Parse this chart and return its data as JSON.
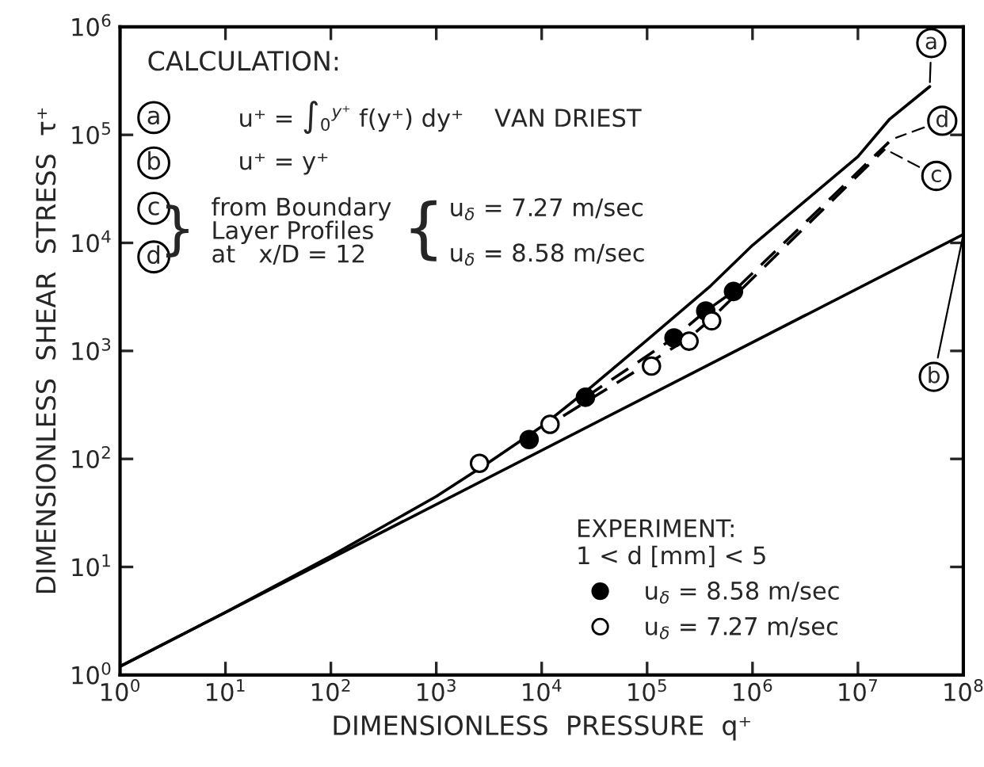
{
  "chart_data": {
    "type": "line",
    "xlabel": "DIMENSIONLESS  PRESSURE  q⁺",
    "ylabel": "DIMENSIONLESS  SHEAR  STRESS  τ⁺",
    "log": "xy",
    "xlim": [
      1,
      100000000
    ],
    "ylim": [
      1,
      1000000
    ],
    "xticks": [
      {
        "value": 1,
        "label": "10$^{0}$"
      },
      {
        "value": 10,
        "label": "10$^{1}$"
      },
      {
        "value": 100,
        "label": "10$^{2}$"
      },
      {
        "value": 1000,
        "label": "10$^{3}$"
      },
      {
        "value": 10000,
        "label": "10$^{4}$"
      },
      {
        "value": 100000,
        "label": "10$^{5}$"
      },
      {
        "value": 1000000,
        "label": "10$^{6}$"
      },
      {
        "value": 10000000,
        "label": "10$^{7}$"
      },
      {
        "value": 100000000,
        "label": "10$^{8}$"
      }
    ],
    "yticks": [
      {
        "value": 1,
        "label": "10$^{0}$"
      },
      {
        "value": 10,
        "label": "10$^{1}$"
      },
      {
        "value": 100,
        "label": "10$^{2}$"
      },
      {
        "value": 1000,
        "label": "10$^{3}$"
      },
      {
        "value": 10000,
        "label": "10$^{4}$"
      },
      {
        "value": 100000,
        "label": "10$^{5}$"
      },
      {
        "value": 1000000,
        "label": "10$^{6}$"
      }
    ],
    "grid": false,
    "legend": "bottom right",
    "legend_title": "EXPERIMENT:\n1 < d [mm] < 5",
    "series": [
      {
        "name": "a",
        "color": "#000000",
        "line_style": "solid",
        "marker": "none",
        "x": [
          1,
          10,
          100,
          1000,
          3000,
          10000,
          30000,
          100000,
          400000,
          1000000,
          10000000,
          20000000,
          48000000
        ],
        "values": [
          1.2,
          3.8,
          12.6,
          45,
          90,
          200,
          470,
          1260,
          4000,
          9500,
          63000,
          140000,
          280000
        ]
      },
      {
        "name": "b",
        "color": "#000000",
        "line_style": "solid",
        "marker": "none",
        "x": [
          1,
          100000000
        ],
        "values": [
          1.2,
          12000
        ]
      },
      {
        "name": "c",
        "color": "#000000",
        "line_style": "dashed",
        "marker": "none",
        "x": [
          16000,
          110000,
          250000,
          410000,
          18000000
        ],
        "values": [
          250,
          800,
          1320,
          2000,
          74000
        ]
      },
      {
        "name": "d",
        "color": "#000000",
        "line_style": "dashed",
        "marker": "none",
        "x": [
          26000,
          180000,
          360000,
          660000,
          21000000
        ],
        "values": [
          372,
          1320,
          2340,
          3550,
          91000
        ]
      },
      {
        "name": "u$_{δ}$ = 8.58 m/sec",
        "type": "scatter",
        "color": "#000000",
        "marker": "circle",
        "x": [
          7600,
          26000,
          180000,
          360000,
          660000
        ],
        "values": [
          151,
          372,
          1320,
          2340,
          3550
        ]
      },
      {
        "name": "u$_{δ}$ = 7.27 m/sec",
        "type": "scatter",
        "color": "#ffffff",
        "marker": "circle",
        "x": [
          2570,
          12000,
          110000,
          250000,
          410000
        ],
        "values": [
          91,
          209,
          724,
          1230,
          1900
        ]
      }
    ],
    "annotations": [
      "CALCULATION:",
      "a",
      "u⁺ = ∫$_{0}$$^{y⁺}$ f(y⁺) dy⁺    VAN DRIEST",
      "b",
      "u⁺ = y⁺",
      "c",
      "d",
      "}",
      "from Boundary\nLayer Profiles\nat   x/D = 12",
      "{",
      "u$_{δ}$ = 7.27 m/sec",
      "u$_{δ}$ = 8.58 m/sec"
    ]
  }
}
